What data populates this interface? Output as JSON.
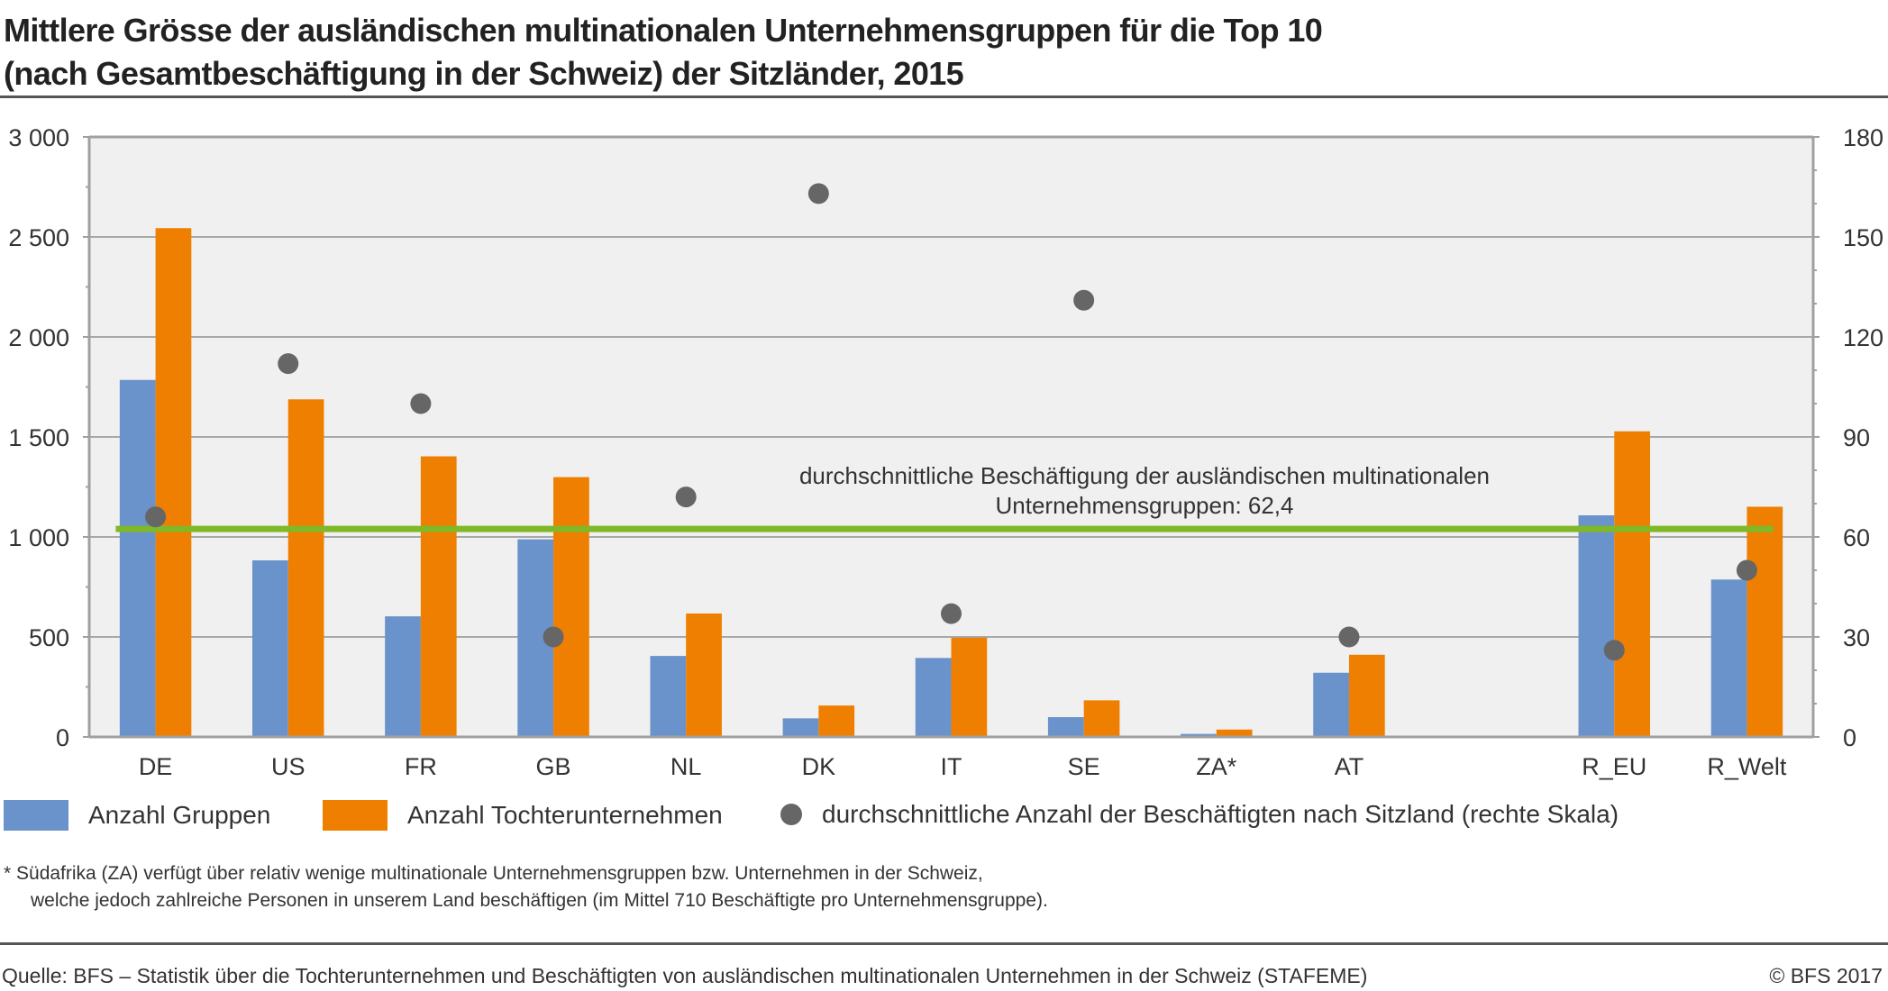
{
  "title_line1": "Mittlere Grösse der ausländischen multinationalen Unternehmensgruppen für die Top 10",
  "title_line2": "(nach Gesamtbeschäftigung in der Schweiz) der Sitzländer, 2015",
  "chart_data": {
    "type": "bar",
    "title": "Mittlere Grösse der ausländischen multinationalen Unternehmensgruppen für die Top 10 (nach Gesamtbeschäftigung in der Schweiz) der Sitzländer, 2015",
    "categories": [
      "DE",
      "US",
      "FR",
      "GB",
      "NL",
      "DK",
      "IT",
      "SE",
      "ZA*",
      "AT",
      "",
      "R_EU",
      "R_Welt"
    ],
    "series": [
      {
        "name": "Anzahl Gruppen",
        "type": "bar",
        "axis": "left",
        "color": "#6a93cb",
        "values": [
          1785,
          883,
          603,
          988,
          405,
          93,
          395,
          99,
          15,
          321,
          null,
          1108,
          787
        ]
      },
      {
        "name": "Anzahl Tochterunternehmen",
        "type": "bar",
        "axis": "left",
        "color": "#ef7f00",
        "values": [
          2544,
          1688,
          1403,
          1299,
          617,
          157,
          496,
          183,
          37,
          411,
          null,
          1528,
          1151
        ]
      },
      {
        "name": "durchschnittliche Anzahl der Beschäftigten nach Sitzland (rechte Skala)",
        "type": "scatter",
        "axis": "right",
        "color": "#666666",
        "values": [
          66,
          112,
          100,
          30,
          72,
          163,
          37,
          131,
          null,
          30,
          null,
          26,
          50
        ]
      }
    ],
    "reference_line": {
      "axis": "right",
      "value": 62.4,
      "color": "#80b828",
      "label_line1": "durchschnittliche Beschäftigung der ausländischen multinationalen",
      "label_line2": "Unternehmensgruppen: 62,4"
    },
    "left_axis": {
      "ylim": [
        0,
        3000
      ],
      "ticks": [
        0,
        500,
        1000,
        1500,
        2000,
        2500,
        3000
      ],
      "tick_labels": [
        "0",
        "500",
        "1 000",
        "1 500",
        "2 000",
        "2 500",
        "3 000"
      ]
    },
    "right_axis": {
      "ylim": [
        0,
        180
      ],
      "ticks": [
        0,
        30,
        60,
        90,
        120,
        150,
        180
      ],
      "tick_labels": [
        "0",
        "30",
        "60",
        "90",
        "120",
        "150",
        "180"
      ]
    },
    "xlabel": "",
    "ylabel": "",
    "grid": true,
    "legend_position": "bottom",
    "plot_background": "#f0f0f0"
  },
  "legend": [
    {
      "label": "Anzahl Gruppen",
      "color": "#6a93cb",
      "shape": "square"
    },
    {
      "label": "Anzahl Tochterunternehmen",
      "color": "#ef7f00",
      "shape": "square"
    },
    {
      "label": "durchschnittliche Anzahl der Beschäftigten nach Sitzland (rechte Skala)",
      "color": "#666666",
      "shape": "circle"
    }
  ],
  "footnote_line1": "*   Südafrika (ZA) verfügt über relativ wenige multinationale Unternehmensgruppen bzw. Unternehmen in der Schweiz,",
  "footnote_line2": "welche jedoch zahlreiche Personen in unserem Land beschäftigen (im Mittel 710 Beschäftigte pro Unternehmensgruppe).",
  "source": "Quelle: BFS – Statistik über die Tochterunternehmen und Beschäftigten von ausländischen multinationalen Unternehmen in der Schweiz (STAFEME)",
  "copyright": "© BFS 2017"
}
